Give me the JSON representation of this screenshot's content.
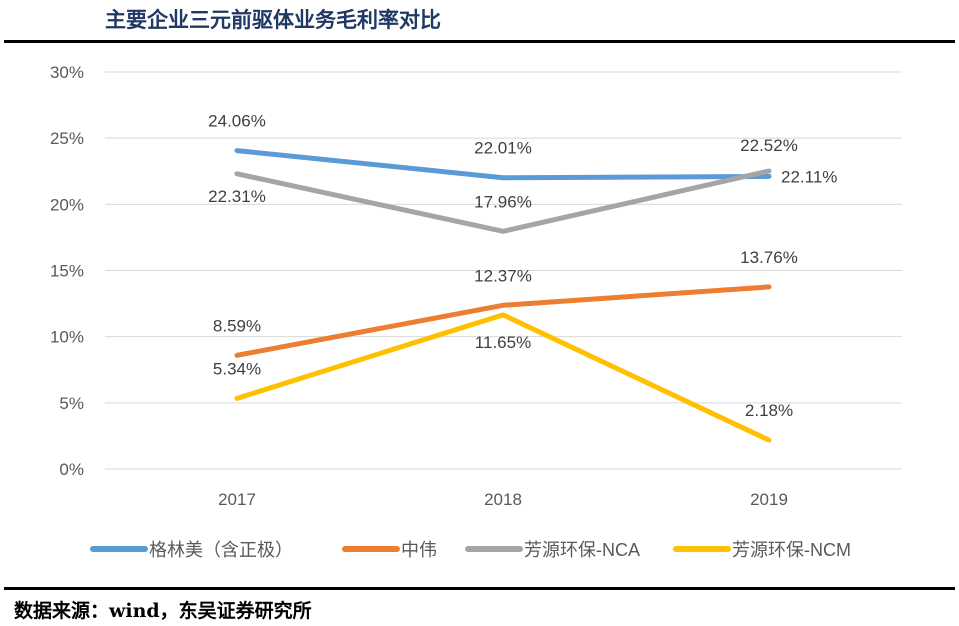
{
  "title": "主要企业三元前驱体业务毛利率对比",
  "source": "数据来源：wind，东吴证券研究所",
  "chart_data": {
    "type": "line",
    "categories": [
      "2017",
      "2018",
      "2019"
    ],
    "ylim": [
      0,
      30
    ],
    "yticks": [
      0,
      5,
      10,
      15,
      20,
      25,
      30
    ],
    "ytick_labels": [
      "0%",
      "5%",
      "10%",
      "15%",
      "20%",
      "25%",
      "30%"
    ],
    "grid": true,
    "legend_position": "bottom",
    "series": [
      {
        "name": "格林美（含正极）",
        "color": "#5b9bd5",
        "values": [
          24.06,
          22.01,
          22.11
        ],
        "labels": [
          "24.06%",
          "22.01%",
          "22.11%"
        ]
      },
      {
        "name": "中伟",
        "color": "#ed7d31",
        "values": [
          8.59,
          12.37,
          13.76
        ],
        "labels": [
          "8.59%",
          "12.37%",
          "13.76%"
        ]
      },
      {
        "name": "芳源环保-NCA",
        "color": "#a5a5a5",
        "values": [
          22.31,
          17.96,
          22.52
        ],
        "labels": [
          "22.31%",
          "17.96%",
          "22.52%"
        ]
      },
      {
        "name": "芳源环保-NCM",
        "color": "#ffc000",
        "values": [
          5.34,
          11.65,
          2.18
        ],
        "labels": [
          "5.34%",
          "11.65%",
          "2.18%"
        ]
      }
    ]
  }
}
